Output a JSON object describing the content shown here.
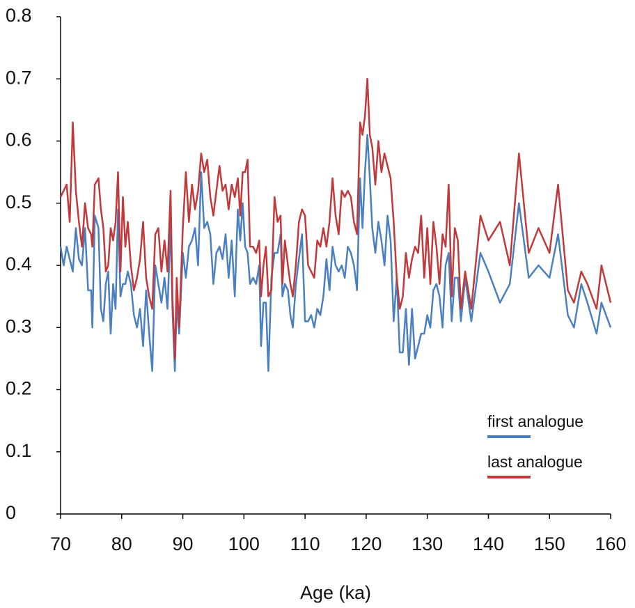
{
  "chart_data": {
    "type": "line",
    "x_label": "Age (ka)",
    "x": [
      70,
      70.5,
      71,
      71.5,
      72,
      72.5,
      73,
      73.5,
      74,
      74.5,
      75,
      75.2,
      75.6,
      76.2,
      76.6,
      77,
      77.4,
      77.8,
      78.2,
      78.6,
      79,
      79.4,
      79.8,
      80.2,
      80.6,
      81,
      81.5,
      82,
      82.5,
      83,
      83.5,
      84,
      84.5,
      85,
      85.5,
      86,
      86.5,
      87,
      87.5,
      88,
      88.3,
      88.7,
      89,
      89.4,
      90,
      90.5,
      91,
      91.5,
      92,
      92.5,
      93,
      93.5,
      94,
      94.5,
      95,
      95.5,
      96,
      96.5,
      97,
      97.5,
      98,
      98.5,
      99,
      99.4,
      99.8,
      100.2,
      100.6,
      101,
      101.5,
      102,
      102.5,
      102.8,
      103.2,
      103.6,
      104,
      104.5,
      105,
      105.5,
      106,
      106.3,
      106.7,
      107.2,
      107.6,
      108,
      108.5,
      109,
      109.5,
      110,
      110.5,
      111,
      111.5,
      112,
      112.5,
      113,
      113.5,
      114,
      114.5,
      115,
      115.5,
      116,
      116.5,
      117,
      117.5,
      118,
      118.5,
      119,
      119.4,
      119.8,
      120.2,
      120.6,
      121,
      121.5,
      122,
      122.5,
      123,
      123.5,
      124,
      124.5,
      125,
      125.5,
      126,
      126.5,
      127,
      127.5,
      128,
      128.5,
      129,
      129.5,
      130,
      130.5,
      131,
      131.5,
      132,
      132.5,
      133,
      133.5,
      134,
      134.5,
      135,
      135.5,
      136.2,
      137.2,
      138.7,
      140,
      141.9,
      143.5,
      145,
      146.6,
      148.2,
      150,
      151.4,
      153,
      154,
      155.2,
      156.2,
      157.7,
      158.5,
      160
    ],
    "series": [
      {
        "name": "first analogue",
        "color": "#4a7fc1",
        "values": [
          0.43,
          0.4,
          0.43,
          0.41,
          0.39,
          0.46,
          0.41,
          0.4,
          0.46,
          0.36,
          0.36,
          0.3,
          0.48,
          0.46,
          0.33,
          0.31,
          0.37,
          0.39,
          0.29,
          0.37,
          0.33,
          0.49,
          0.35,
          0.37,
          0.37,
          0.39,
          0.37,
          0.32,
          0.3,
          0.33,
          0.27,
          0.36,
          0.29,
          0.23,
          0.4,
          0.37,
          0.34,
          0.38,
          0.33,
          0.47,
          0.33,
          0.23,
          0.34,
          0.29,
          0.42,
          0.38,
          0.43,
          0.44,
          0.46,
          0.4,
          0.55,
          0.46,
          0.47,
          0.45,
          0.37,
          0.42,
          0.43,
          0.41,
          0.45,
          0.38,
          0.44,
          0.35,
          0.49,
          0.44,
          0.5,
          0.43,
          0.42,
          0.37,
          0.38,
          0.37,
          0.4,
          0.27,
          0.34,
          0.34,
          0.23,
          0.38,
          0.42,
          0.42,
          0.45,
          0.35,
          0.37,
          0.36,
          0.32,
          0.3,
          0.37,
          0.41,
          0.45,
          0.31,
          0.31,
          0.32,
          0.3,
          0.33,
          0.32,
          0.35,
          0.41,
          0.36,
          0.43,
          0.4,
          0.39,
          0.4,
          0.38,
          0.43,
          0.42,
          0.4,
          0.36,
          0.54,
          0.46,
          0.55,
          0.61,
          0.54,
          0.46,
          0.42,
          0.47,
          0.44,
          0.4,
          0.48,
          0.44,
          0.31,
          0.38,
          0.26,
          0.26,
          0.33,
          0.24,
          0.33,
          0.25,
          0.27,
          0.29,
          0.29,
          0.32,
          0.3,
          0.36,
          0.37,
          0.35,
          0.3,
          0.4,
          0.42,
          0.31,
          0.38,
          0.38,
          0.31,
          0.38,
          0.31,
          0.42,
          0.39,
          0.34,
          0.37,
          0.5,
          0.38,
          0.4,
          0.38,
          0.45,
          0.32,
          0.3,
          0.37,
          0.34,
          0.29,
          0.34,
          0.3
        ]
      },
      {
        "name": "last analogue",
        "color": "#c0393b",
        "values": [
          0.51,
          0.52,
          0.53,
          0.47,
          0.63,
          0.52,
          0.47,
          0.43,
          0.5,
          0.46,
          0.45,
          0.43,
          0.53,
          0.54,
          0.49,
          0.46,
          0.39,
          0.4,
          0.46,
          0.44,
          0.47,
          0.55,
          0.39,
          0.51,
          0.43,
          0.47,
          0.4,
          0.36,
          0.38,
          0.41,
          0.47,
          0.38,
          0.35,
          0.33,
          0.45,
          0.46,
          0.39,
          0.44,
          0.39,
          0.52,
          0.35,
          0.25,
          0.38,
          0.3,
          0.46,
          0.55,
          0.47,
          0.53,
          0.49,
          0.52,
          0.58,
          0.55,
          0.57,
          0.51,
          0.48,
          0.52,
          0.56,
          0.52,
          0.53,
          0.49,
          0.53,
          0.51,
          0.54,
          0.48,
          0.55,
          0.55,
          0.57,
          0.43,
          0.43,
          0.42,
          0.44,
          0.35,
          0.4,
          0.43,
          0.35,
          0.36,
          0.51,
          0.47,
          0.48,
          0.37,
          0.44,
          0.4,
          0.37,
          0.35,
          0.4,
          0.47,
          0.49,
          0.48,
          0.4,
          0.39,
          0.38,
          0.44,
          0.43,
          0.46,
          0.43,
          0.47,
          0.54,
          0.48,
          0.45,
          0.52,
          0.51,
          0.52,
          0.51,
          0.47,
          0.45,
          0.63,
          0.61,
          0.64,
          0.7,
          0.61,
          0.59,
          0.53,
          0.6,
          0.55,
          0.58,
          0.56,
          0.54,
          0.47,
          0.38,
          0.33,
          0.35,
          0.42,
          0.38,
          0.41,
          0.43,
          0.42,
          0.48,
          0.38,
          0.46,
          0.37,
          0.47,
          0.43,
          0.37,
          0.45,
          0.43,
          0.53,
          0.35,
          0.46,
          0.44,
          0.33,
          0.39,
          0.33,
          0.48,
          0.44,
          0.47,
          0.4,
          0.58,
          0.42,
          0.46,
          0.42,
          0.53,
          0.36,
          0.34,
          0.39,
          0.37,
          0.33,
          0.4,
          0.34
        ]
      }
    ],
    "xlim": [
      70,
      160
    ],
    "xticks": [
      70,
      80,
      90,
      100,
      110,
      120,
      130,
      140,
      150,
      160
    ],
    "ylim": [
      0,
      0.8
    ],
    "yticks": [
      0,
      0.1,
      0.2,
      0.3,
      0.4,
      0.5,
      0.6,
      0.7,
      0.8
    ],
    "grid": false,
    "legend": "lower right"
  }
}
